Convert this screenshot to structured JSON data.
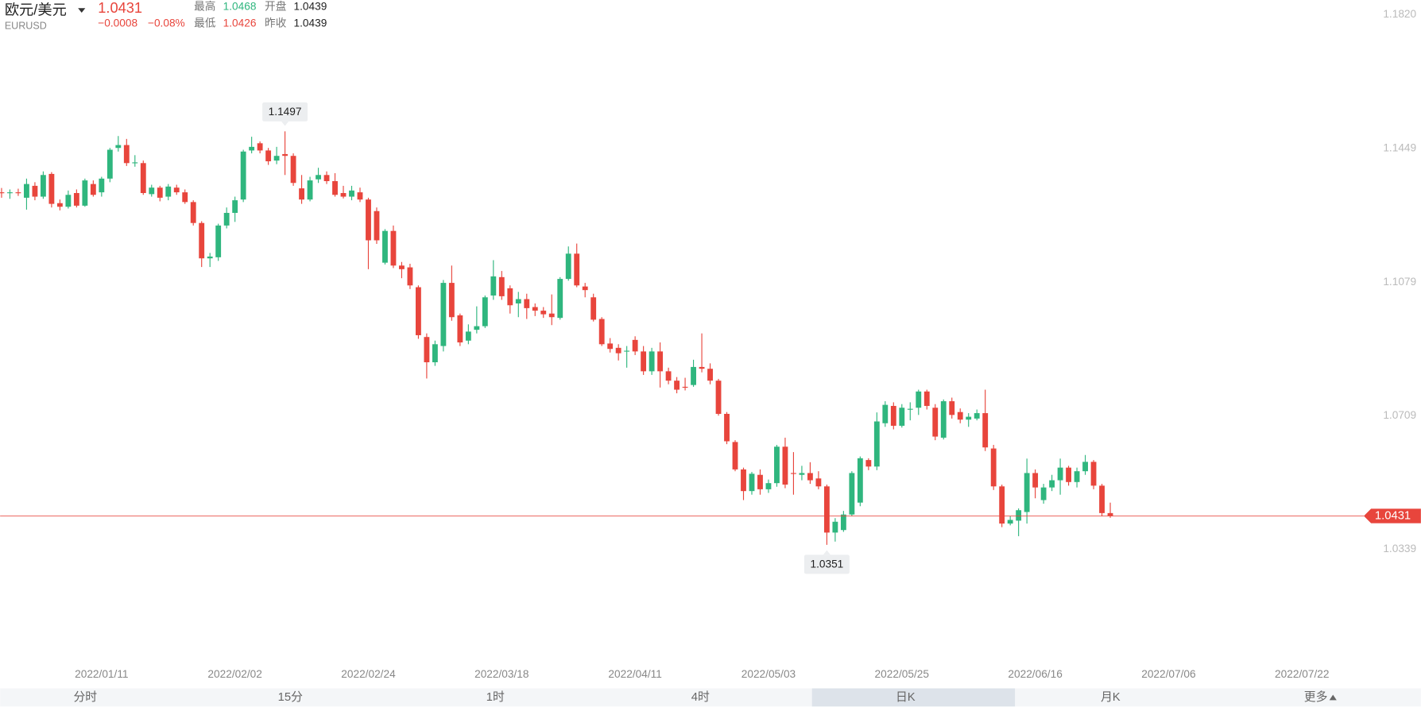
{
  "header": {
    "name": "欧元/美元",
    "code": "EURUSD",
    "change": "−0.0008",
    "change_pct": "−0.08%",
    "high_label": "最高",
    "open_label": "开盘",
    "low_label": "最低",
    "prev_close_label": "昨收"
  },
  "tabs": [
    "分时",
    "15分",
    "1时",
    "4时",
    "日K",
    "月K",
    "更多"
  ],
  "selected_tab": 4,
  "chart_data": {
    "type": "candlestick",
    "up_color": "#2fb67e",
    "down_color": "#e8453c",
    "last_price_color": "#e8453c",
    "ylim": [
      1.0016,
      1.1861
    ],
    "yticks": [
      {
        "value": 1.182,
        "label": "1.1820"
      },
      1.1449,
      1.1079,
      1.0709,
      1.0339
    ],
    "grid": false,
    "categories": [
      null,
      null,
      null,
      null,
      null,
      null,
      null,
      null,
      null,
      null,
      null,
      null,
      "2022/01/11",
      null,
      null,
      null,
      null,
      null,
      null,
      null,
      null,
      null,
      null,
      null,
      null,
      null,
      null,
      null,
      "2022/02/02",
      null,
      null,
      null,
      null,
      null,
      null,
      null,
      null,
      null,
      null,
      null,
      null,
      null,
      null,
      null,
      "2022/02/24",
      null,
      null,
      null,
      null,
      null,
      null,
      null,
      null,
      null,
      null,
      null,
      null,
      null,
      null,
      null,
      "2022/03/18",
      null,
      null,
      null,
      null,
      null,
      null,
      null,
      null,
      null,
      null,
      null,
      null,
      null,
      null,
      null,
      "2022/04/11",
      null,
      null,
      null,
      null,
      null,
      null,
      null,
      null,
      null,
      null,
      null,
      null,
      null,
      null,
      null,
      "2022/05/03",
      null,
      null,
      null,
      null,
      null,
      null,
      null,
      null,
      null,
      null,
      null,
      null,
      null,
      null,
      null,
      "2022/05/25",
      null,
      null,
      null,
      null,
      null,
      null,
      null,
      null,
      null,
      null,
      null,
      null,
      null,
      null,
      null,
      "2022/06/16",
      null,
      null,
      null,
      null,
      null,
      null,
      null,
      null,
      null,
      null,
      null,
      null,
      null,
      null,
      null,
      "2022/07/06",
      null,
      null,
      null,
      null,
      null,
      null,
      null,
      null,
      null,
      null,
      null,
      null,
      null,
      null,
      null,
      "2022/07/22",
      null,
      null,
      null,
      null,
      null
    ],
    "open": [
      1.1328,
      1.1326,
      1.1328,
      1.1313,
      1.1346,
      1.1316,
      1.1379,
      1.1298,
      1.1288,
      1.1326,
      1.1291,
      1.1351,
      1.1328,
      1.1366,
      1.1451,
      1.1459,
      1.1409,
      1.1409,
      1.1323,
      1.1341,
      1.1316,
      1.1341,
      1.1328,
      1.1301,
      1.1243,
      1.1145,
      1.1148,
      1.1236,
      1.1271,
      1.1308,
      1.1444,
      1.1464,
      1.1444,
      1.1416,
      1.1434,
      1.1429,
      1.1339,
      1.1308,
      1.1364,
      1.1376,
      1.1359,
      1.1326,
      1.1316,
      1.1328,
      1.1308,
      1.1276,
      1.1133,
      1.1221,
      1.1125,
      1.112,
      1.1065,
      1.0927,
      1.0857,
      1.0902,
      1.1077,
      1.0987,
      1.0917,
      1.0947,
      1.0957,
      1.1042,
      1.1093,
      1.1062,
      1.102,
      1.1032,
      1.101,
      1.1,
      1.0992,
      1.098,
      1.1088,
      1.1158,
      1.1067,
      1.1037,
      1.0977,
      1.0909,
      1.0897,
      1.0887,
      1.0919,
      1.0887,
      1.0832,
      1.0887,
      1.0832,
      1.0806,
      1.0789,
      1.0794,
      1.0844,
      1.0839,
      1.0806,
      1.0714,
      1.0636,
      1.056,
      1.05,
      1.0545,
      1.0505,
      1.0522,
      1.0623,
      1.055,
      1.0545,
      1.055,
      1.0535,
      1.0513,
      1.0385,
      1.0392,
      1.0435,
      1.0468,
      1.0586,
      1.0568,
      1.0688,
      1.0736,
      1.0681,
      1.0726,
      1.0731,
      1.0776,
      1.0731,
      1.0648,
      1.0749,
      1.0719,
      1.0698,
      1.0701,
      1.0716,
      1.0618,
      1.0513,
      1.041,
      1.0418,
      1.0442,
      1.055,
      1.0475,
      1.051,
      1.053,
      1.0565,
      1.0525,
      1.0555,
      1.0581,
      1.0515,
      1.0439,
      null,
      null,
      null,
      null,
      null,
      null,
      null,
      null,
      null,
      null,
      null,
      null,
      null,
      null,
      null,
      null,
      null,
      null,
      null,
      null,
      null,
      null,
      null,
      null,
      null,
      null,
      null,
      null
    ],
    "high": [
      1.134,
      1.1336,
      1.1338,
      1.1366,
      1.1356,
      1.1386,
      1.1384,
      1.1308,
      1.1333,
      1.1336,
      1.1366,
      1.1361,
      1.1371,
      1.1451,
      1.1484,
      1.1476,
      1.1431,
      1.1416,
      1.1349,
      1.1346,
      1.1351,
      1.1349,
      1.1336,
      1.1306,
      1.1248,
      1.116,
      1.1241,
      1.1286,
      1.1316,
      1.1446,
      1.1482,
      1.1469,
      1.1451,
      1.1454,
      1.1497,
      1.1436,
      1.1376,
      1.1371,
      1.1396,
      1.1386,
      1.1381,
      1.1346,
      1.1346,
      1.1341,
      1.1313,
      1.1286,
      1.1226,
      1.1236,
      1.1135,
      1.113,
      1.107,
      1.0937,
      1.0917,
      1.1085,
      1.1125,
      1.0992,
      1.0962,
      1.1012,
      1.1042,
      1.114,
      1.111,
      1.107,
      1.1052,
      1.1047,
      1.102,
      1.101,
      1.1045,
      1.1093,
      1.1178,
      1.1186,
      1.1077,
      1.1047,
      1.0982,
      1.0924,
      1.0907,
      1.0902,
      1.0929,
      1.0902,
      1.0897,
      1.0912,
      1.0842,
      1.0816,
      1.0814,
      1.0864,
      1.0937,
      1.0854,
      1.0811,
      1.0719,
      1.0641,
      1.0565,
      1.0553,
      1.056,
      1.0532,
      1.0628,
      1.0648,
      1.0608,
      1.057,
      1.058,
      1.0555,
      1.0518,
      1.0425,
      1.0445,
      1.0555,
      1.0596,
      1.0591,
      1.0718,
      1.0749,
      1.0746,
      1.0741,
      1.0746,
      1.0781,
      1.0781,
      1.0741,
      1.0754,
      1.0759,
      1.0729,
      1.0716,
      1.0726,
      1.0781,
      1.0628,
      1.0518,
      1.043,
      1.0452,
      1.059,
      1.056,
      1.052,
      1.0545,
      1.059,
      1.057,
      1.0565,
      1.06,
      1.0586,
      1.052,
      1.0468,
      null,
      null,
      null,
      null,
      null,
      null,
      null,
      null,
      null,
      null,
      null,
      null,
      null,
      null,
      null,
      null,
      null,
      null,
      null,
      null,
      null,
      null,
      null,
      null,
      null,
      null,
      null,
      null
    ],
    "low": [
      1.1313,
      1.131,
      1.1318,
      1.128,
      1.1306,
      1.131,
      1.1286,
      1.1278,
      1.1283,
      1.1286,
      1.1288,
      1.1316,
      1.1316,
      1.1356,
      1.1441,
      1.1401,
      1.1399,
      1.1321,
      1.1316,
      1.1303,
      1.1306,
      1.1321,
      1.1296,
      1.1236,
      1.1121,
      1.1121,
      1.1138,
      1.1228,
      1.1246,
      1.1301,
      1.1436,
      1.1436,
      1.1404,
      1.1406,
      1.1376,
      1.1346,
      1.1296,
      1.1303,
      1.1354,
      1.1351,
      1.1316,
      1.1311,
      1.1306,
      1.1301,
      1.1115,
      1.1185,
      1.1128,
      1.1118,
      1.109,
      1.106,
      1.0922,
      1.0812,
      1.0847,
      1.0887,
      1.0972,
      1.0902,
      1.0907,
      1.0937,
      1.0952,
      1.103,
      1.103,
      1.0992,
      1.0982,
      1.0977,
      1.0985,
      1.098,
      1.096,
      1.0975,
      1.1083,
      1.1065,
      1.1037,
      1.097,
      1.0902,
      1.0884,
      1.0862,
      1.0842,
      1.0877,
      1.0822,
      1.0822,
      1.0787,
      1.0796,
      1.0771,
      1.0779,
      1.0789,
      1.0829,
      1.0796,
      1.0709,
      1.063,
      1.0555,
      1.0475,
      1.049,
      1.049,
      1.0495,
      1.0512,
      1.0508,
      1.049,
      1.053,
      1.052,
      1.0505,
      1.0351,
      1.036,
      1.0387,
      1.043,
      1.0458,
      1.0558,
      1.0558,
      1.0678,
      1.0671,
      1.0676,
      1.0696,
      1.0711,
      1.0726,
      1.0641,
      1.0643,
      1.0701,
      1.0688,
      1.0678,
      1.0696,
      1.0611,
      1.0503,
      1.04,
      1.0405,
      1.0375,
      1.041,
      1.048,
      1.0465,
      1.05,
      1.049,
      1.0515,
      1.051,
      1.0545,
      1.0505,
      1.043,
      1.0426,
      null,
      null,
      null,
      null,
      null,
      null,
      null,
      null,
      null,
      null,
      null,
      null,
      null,
      null,
      null,
      null,
      null,
      null,
      null,
      null,
      null,
      null,
      null,
      null,
      null,
      null,
      null,
      null
    ],
    "close": [
      1.1326,
      1.1328,
      1.1326,
      1.1351,
      1.1316,
      1.1376,
      1.1296,
      1.1288,
      1.1321,
      1.1291,
      1.1361,
      1.1321,
      1.1366,
      1.1446,
      1.1459,
      1.1409,
      1.1411,
      1.1326,
      1.1341,
      1.1313,
      1.1344,
      1.1328,
      1.1301,
      1.1243,
      1.1145,
      1.115,
      1.1236,
      1.1271,
      1.1306,
      1.1441,
      1.1454,
      1.1444,
      1.1414,
      1.1429,
      1.1429,
      1.1354,
      1.1308,
      1.1361,
      1.1376,
      1.1359,
      1.1321,
      1.1316,
      1.1333,
      1.1308,
      1.1195,
      1.1195,
      1.1221,
      1.1125,
      1.1115,
      1.107,
      1.0932,
      1.0857,
      1.0907,
      1.1077,
      1.0982,
      1.0912,
      1.0942,
      1.0957,
      1.1037,
      1.1095,
      1.104,
      1.1015,
      1.1032,
      1.1007,
      1.1,
      1.099,
      1.0982,
      1.1088,
      1.1158,
      1.107,
      1.1057,
      1.0975,
      1.0907,
      1.0894,
      1.0882,
      1.0889,
      1.0887,
      1.0832,
      1.0887,
      1.0832,
      1.0806,
      1.0781,
      1.0787,
      1.0844,
      1.0839,
      1.0806,
      1.0714,
      1.0638,
      1.056,
      1.05,
      1.0548,
      1.0505,
      1.0522,
      1.0623,
      1.0518,
      1.0548,
      1.055,
      1.053,
      1.0513,
      1.0385,
      1.0415,
      1.0435,
      1.055,
      1.0591,
      1.0568,
      1.0693,
      1.0739,
      1.0681,
      1.0731,
      1.0728,
      1.0776,
      1.0736,
      1.0651,
      1.0749,
      1.0711,
      1.0698,
      1.0706,
      1.0716,
      1.0621,
      1.0513,
      1.041,
      1.042,
      1.0447,
      1.055,
      1.051,
      1.051,
      1.053,
      1.0565,
      1.0525,
      1.0555,
      1.0581,
      1.0515,
      1.0439,
      1.0431,
      null,
      null,
      null,
      null,
      null,
      null,
      null,
      null,
      null,
      null,
      null,
      null,
      null,
      null,
      null,
      null,
      null,
      null,
      null,
      null,
      null,
      null,
      null,
      null,
      null,
      null,
      null,
      null
    ]
  }
}
